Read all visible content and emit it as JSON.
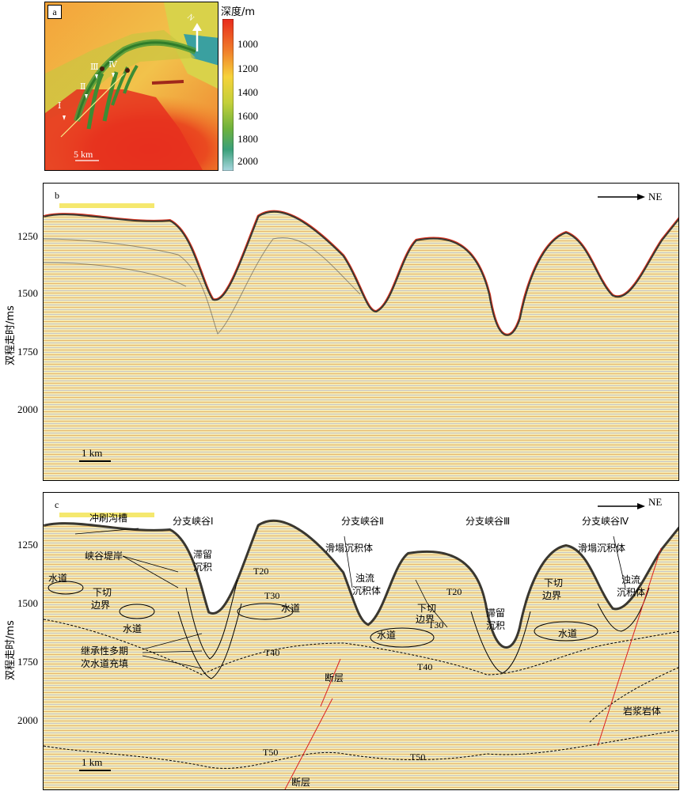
{
  "panel_a": {
    "letter": "a",
    "north_label": "N",
    "scale_label": "5 km",
    "profiles": [
      "Ⅰ",
      "Ⅱ",
      "Ⅲ",
      "Ⅳ"
    ],
    "colorbar": {
      "title": "深度/m",
      "ticks": [
        "1000",
        "1200",
        "1400",
        "1600",
        "1800",
        "2000"
      ]
    }
  },
  "panel_b": {
    "letter": "b",
    "direction_label": "NE",
    "scale_label": "1 km",
    "y_ticks": [
      "1250",
      "1500",
      "1750",
      "2000"
    ],
    "y_axis_label": "双程走时/ms"
  },
  "panel_c": {
    "letter": "c",
    "direction_label": "NE",
    "scale_label": "1 km",
    "y_ticks": [
      "1250",
      "1500",
      "1750",
      "2000"
    ],
    "y_axis_label": "双程走时/ms",
    "canyons": [
      "分支峡谷Ⅰ",
      "分支峡谷Ⅱ",
      "分支峡谷Ⅲ",
      "分支峡谷Ⅳ"
    ],
    "labels": {
      "scour_trough": "冲刷沟槽",
      "levee": "峡谷堤岸",
      "channel": "水道",
      "incision_boundary_1": "下切",
      "incision_boundary_2": "边界",
      "lag_1": "滞留",
      "lag_2": "沉积",
      "slump": "滑塌沉积体",
      "turbidite_1": "浊流",
      "turbidite_2": "沉积体",
      "fill_1": "继承性多期",
      "fill_2": "次水道充填",
      "fault": "断层",
      "magma": "岩浆岩体",
      "horizons": [
        "T20",
        "T30",
        "T40",
        "T50"
      ]
    }
  }
}
